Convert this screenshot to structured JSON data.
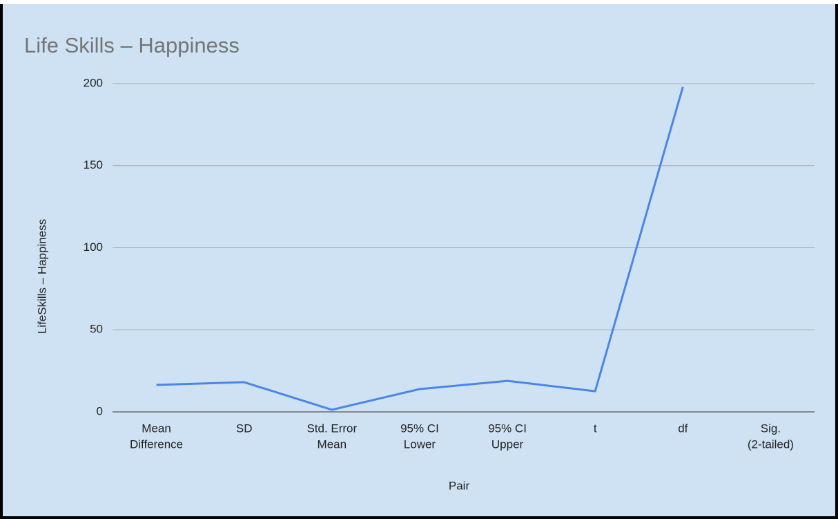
{
  "chart_data": {
    "type": "line",
    "title": "Life Skills – Happiness",
    "x_label": "Pair",
    "y_label": "LifeSkills – Happiness",
    "categories": [
      [
        "Mean",
        "Difference"
      ],
      [
        "SD"
      ],
      [
        "Std. Error",
        "Mean"
      ],
      [
        "95% CI",
        "Lower"
      ],
      [
        "95% CI",
        "Upper"
      ],
      [
        "t"
      ],
      [
        "df"
      ],
      [
        "Sig.",
        "(2-tailed)"
      ]
    ],
    "series": [
      {
        "name": "LifeSkills – Happiness",
        "color": "#4a86e8",
        "values": [
          16.4,
          18.1,
          1.3,
          13.9,
          18.9,
          12.6,
          198,
          null
        ]
      }
    ],
    "ylim": [
      0,
      200
    ],
    "yticks": [
      0,
      50,
      100,
      150,
      200
    ],
    "grid": true
  }
}
